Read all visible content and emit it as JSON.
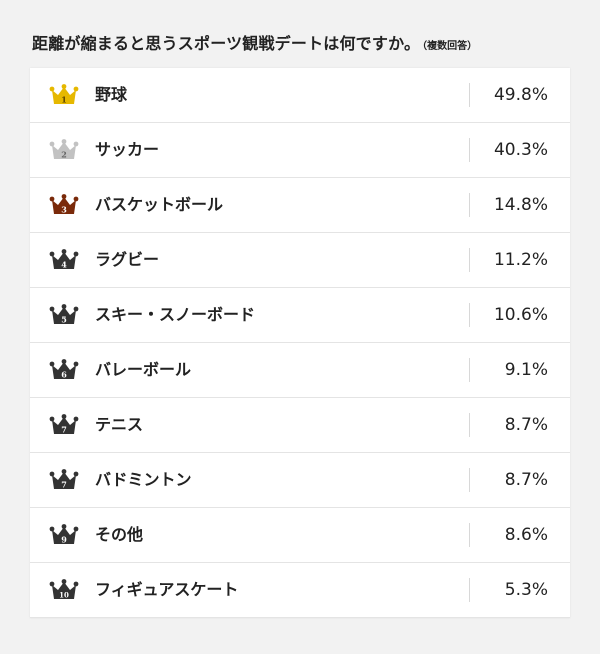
{
  "title": "距離が縮まると思うスポーツ観戦デートは何ですか。",
  "note": "（複数回答）",
  "colors": {
    "gold": "#e6b800",
    "silver": "#c2c2c2",
    "bronze": "#7a2a0a",
    "dark": "#333333"
  },
  "chart_data": {
    "type": "table",
    "title": "距離が縮まると思うスポーツ観戦デートは何ですか。",
    "note": "（複数回答）",
    "unit": "%",
    "rows": [
      {
        "rank": "1",
        "label": "野球",
        "value": 49.8,
        "display": "49.8%",
        "crown": "gold"
      },
      {
        "rank": "2",
        "label": "サッカー",
        "value": 40.3,
        "display": "40.3%",
        "crown": "silver"
      },
      {
        "rank": "3",
        "label": "バスケットボール",
        "value": 14.8,
        "display": "14.8%",
        "crown": "bronze"
      },
      {
        "rank": "4",
        "label": "ラグビー",
        "value": 11.2,
        "display": "11.2%",
        "crown": "dark"
      },
      {
        "rank": "5",
        "label": "スキー・スノーボード",
        "value": 10.6,
        "display": "10.6%",
        "crown": "dark"
      },
      {
        "rank": "6",
        "label": "バレーボール",
        "value": 9.1,
        "display": "9.1%",
        "crown": "dark"
      },
      {
        "rank": "7",
        "label": "テニス",
        "value": 8.7,
        "display": "8.7%",
        "crown": "dark"
      },
      {
        "rank": "7",
        "label": "バドミントン",
        "value": 8.7,
        "display": "8.7%",
        "crown": "dark"
      },
      {
        "rank": "9",
        "label": "その他",
        "value": 8.6,
        "display": "8.6%",
        "crown": "dark"
      },
      {
        "rank": "10",
        "label": "フィギュアスケート",
        "value": 5.3,
        "display": "5.3%",
        "crown": "dark"
      }
    ]
  }
}
